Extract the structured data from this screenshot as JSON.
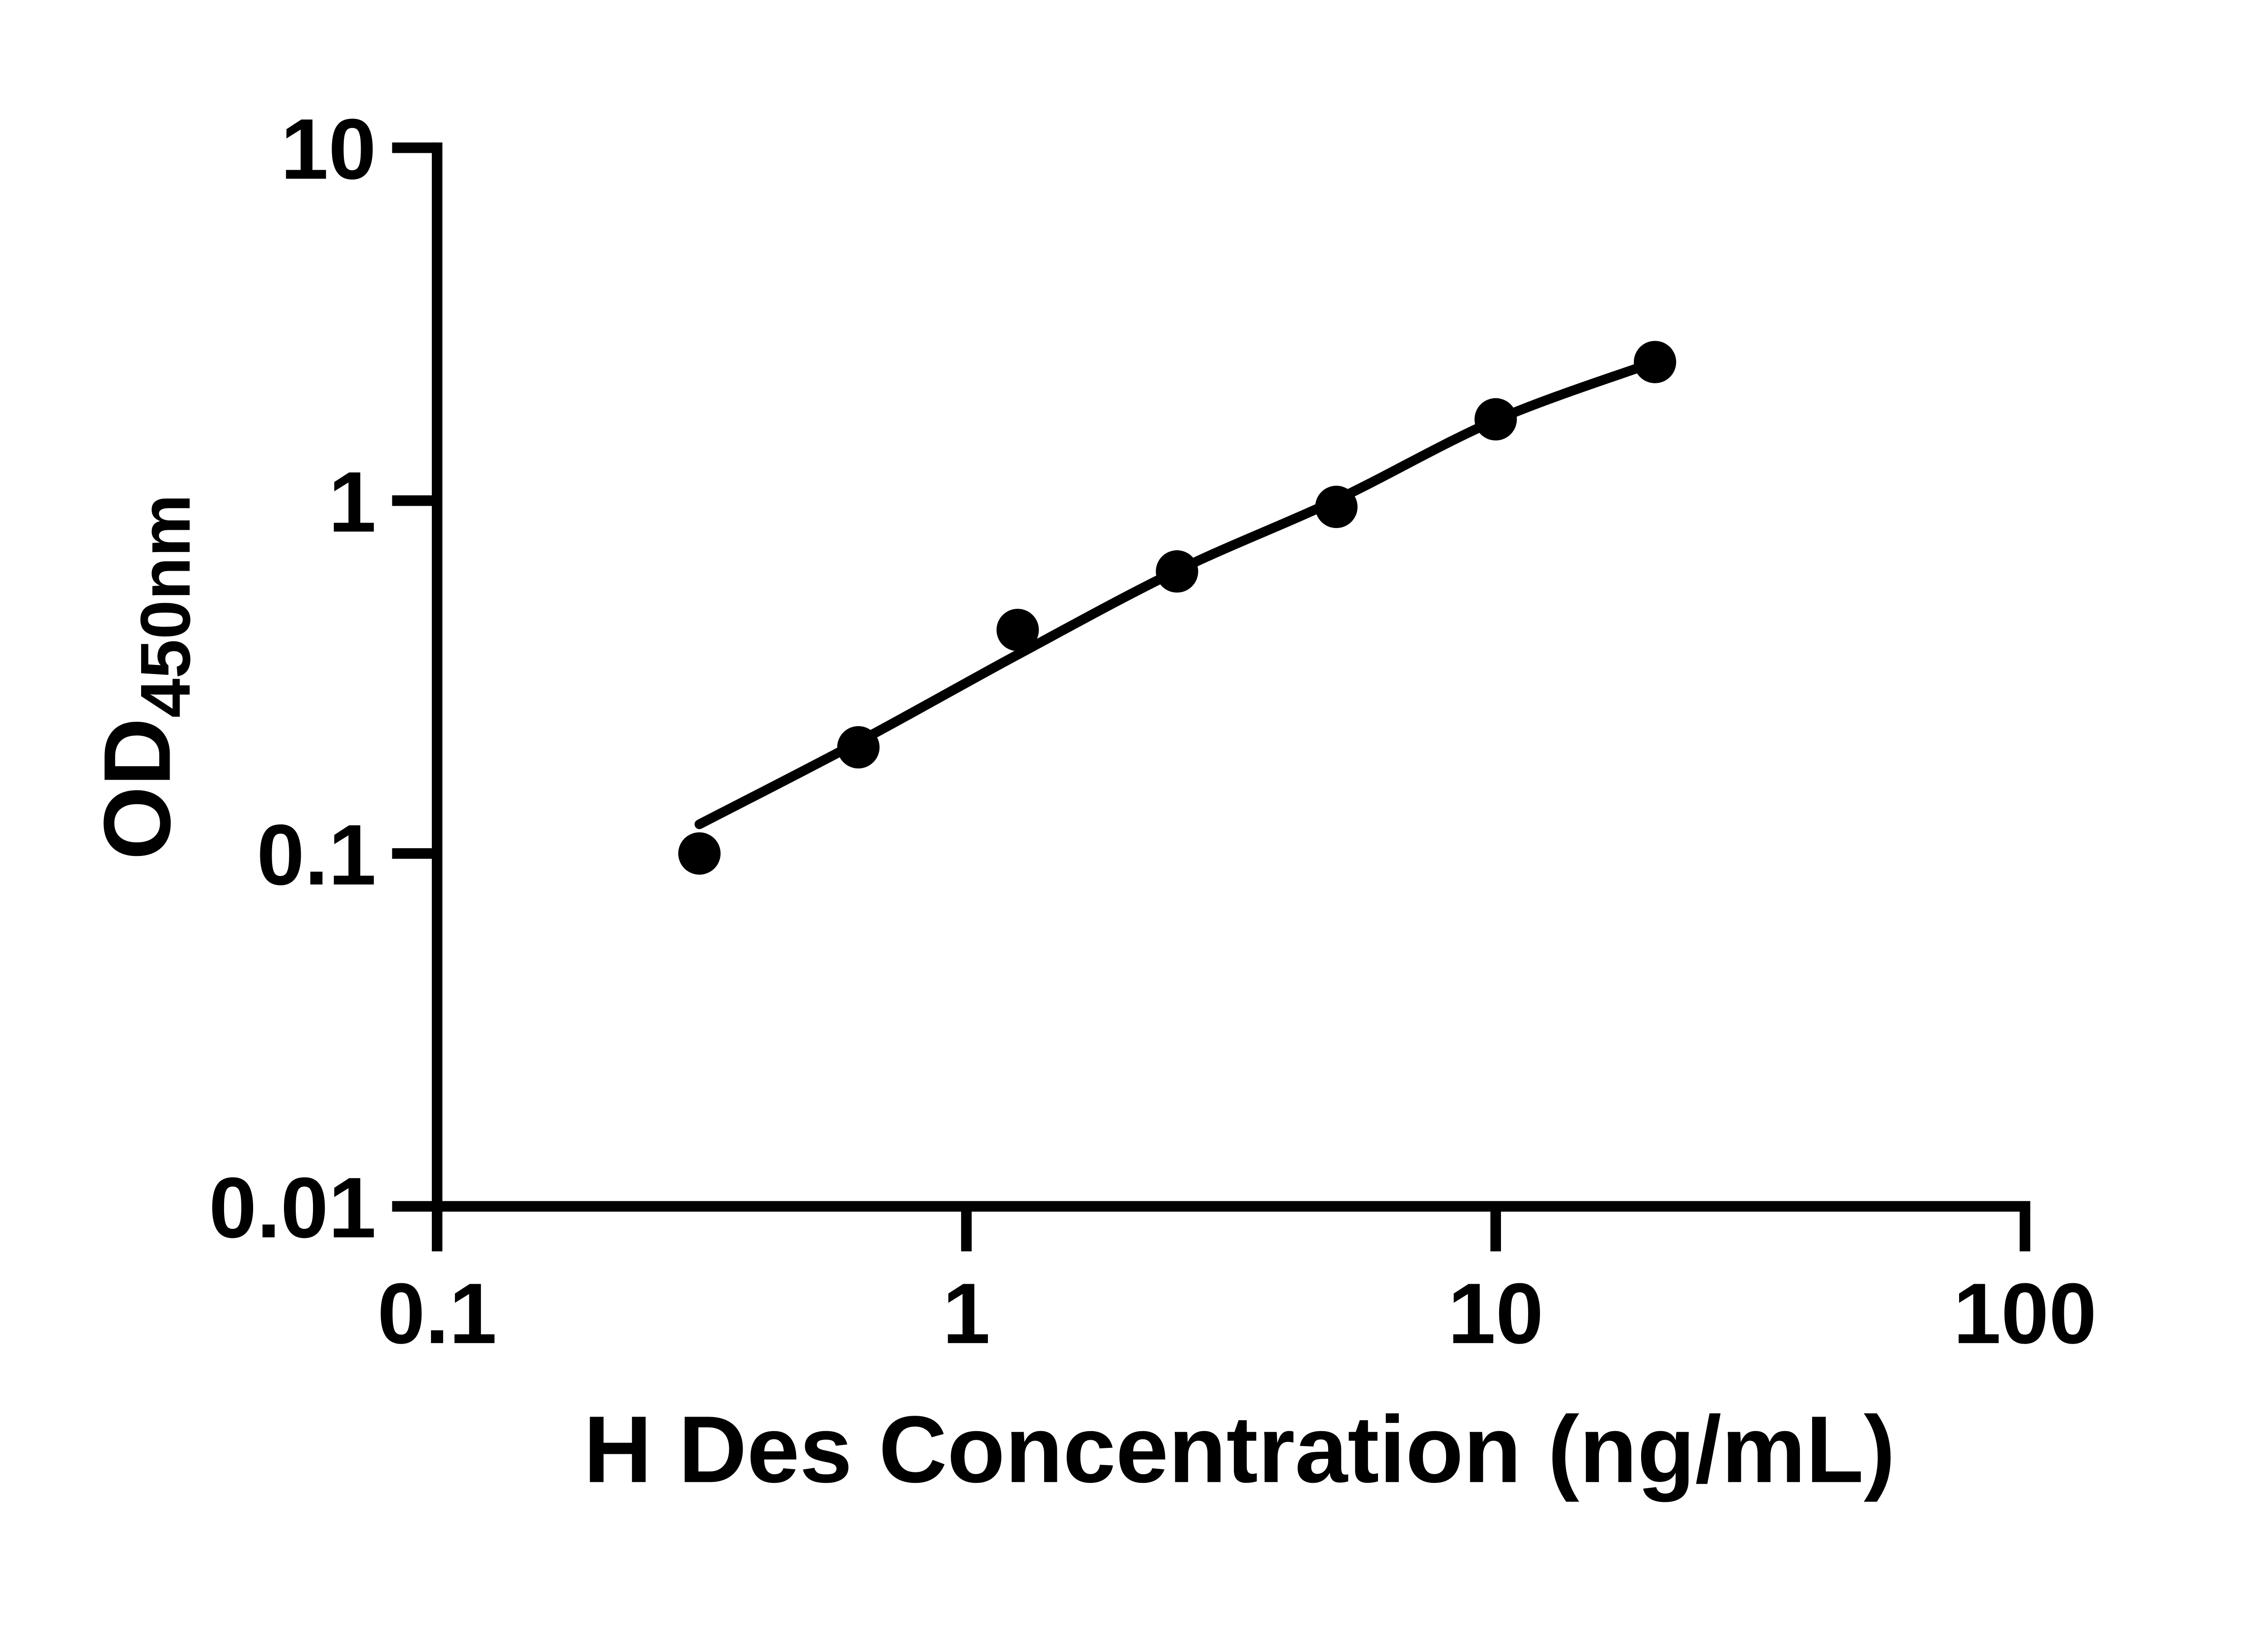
{
  "chart_data": {
    "type": "scatter",
    "title": "",
    "xlabel": "H Des Concentration (ng/mL)",
    "ylabel_main": "OD",
    "ylabel_sub": "450nm",
    "x_scale": "log",
    "y_scale": "log",
    "xlim": [
      0.1,
      100
    ],
    "ylim": [
      0.01,
      10
    ],
    "grid": false,
    "legend": "none",
    "x_ticks": [
      {
        "value": 0.1,
        "label": "0.1"
      },
      {
        "value": 1,
        "label": "1"
      },
      {
        "value": 10,
        "label": "10"
      },
      {
        "value": 100,
        "label": "100"
      }
    ],
    "y_ticks": [
      {
        "value": 10,
        "label": "10"
      },
      {
        "value": 1,
        "label": "1"
      },
      {
        "value": 0.1,
        "label": "0.1"
      },
      {
        "value": 0.01,
        "label": "0.01"
      }
    ],
    "series": [
      {
        "name": "standard-points",
        "marker": "filled-circle",
        "color": "#000000",
        "points": [
          {
            "x": 0.313,
            "od": 0.1
          },
          {
            "x": 0.625,
            "od": 0.2
          },
          {
            "x": 1.25,
            "od": 0.43
          },
          {
            "x": 2.5,
            "od": 0.63
          },
          {
            "x": 5,
            "od": 0.96
          },
          {
            "x": 10,
            "od": 1.7
          },
          {
            "x": 20,
            "od": 2.47
          }
        ]
      }
    ],
    "fit_curve": {
      "name": "fitted-standard-curve",
      "color": "#000000",
      "points": [
        [
          0.313,
          0.121
        ],
        [
          0.625,
          0.207
        ],
        [
          1.25,
          0.366
        ],
        [
          2.5,
          0.633
        ],
        [
          5,
          1.005
        ],
        [
          10,
          1.69
        ],
        [
          20,
          2.47
        ]
      ]
    },
    "colors": {
      "foreground": "#000000",
      "background": "#ffffff"
    }
  }
}
